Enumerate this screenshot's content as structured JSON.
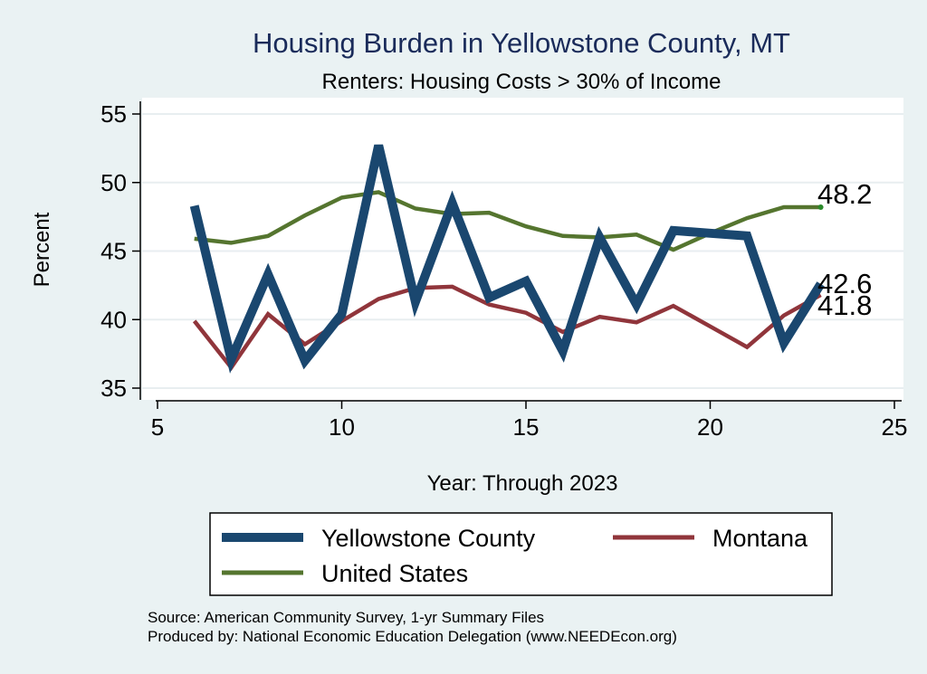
{
  "chart_data": {
    "type": "line",
    "title": "Housing Burden in Yellowstone County, MT",
    "subtitle": "Renters: Housing Costs > 30% of Income",
    "xlabel": "Year: Through 2023",
    "ylabel": "Percent",
    "xlim": [
      5,
      25
    ],
    "ylim": [
      34,
      56
    ],
    "xticks": [
      "5",
      "10",
      "15",
      "20",
      "25"
    ],
    "yticks": [
      "35",
      "40",
      "45",
      "50",
      "55"
    ],
    "x": [
      6,
      7,
      8,
      9,
      10,
      11,
      12,
      13,
      14,
      15,
      16,
      17,
      18,
      19,
      20,
      21,
      22,
      23
    ],
    "series": [
      {
        "name": "Yellowstone County",
        "color": "#1a476f",
        "values": [
          48.3,
          37.1,
          43.3,
          37.0,
          40.4,
          52.7,
          41.3,
          48.5,
          41.6,
          42.8,
          37.7,
          46.0,
          41.1,
          46.5,
          46.3,
          46.1,
          38.3,
          42.6
        ],
        "end_label": "42.6"
      },
      {
        "name": "Montana",
        "color": "#90353b",
        "values": [
          39.9,
          36.5,
          40.4,
          38.2,
          39.9,
          41.5,
          42.3,
          42.4,
          41.1,
          40.5,
          39.1,
          40.2,
          39.8,
          41.0,
          39.5,
          38.0,
          40.3,
          41.8
        ],
        "end_label": "41.8"
      },
      {
        "name": "United States",
        "color": "#55752f",
        "values": [
          45.9,
          45.6,
          46.1,
          47.6,
          48.9,
          49.3,
          48.1,
          47.7,
          47.8,
          46.8,
          46.1,
          46.0,
          46.2,
          45.1,
          46.3,
          47.4,
          48.2,
          48.2
        ],
        "end_label": "48.2"
      }
    ],
    "legend": {
      "position": "bottom",
      "items": [
        "Yellowstone County",
        "Montana",
        "United States"
      ]
    },
    "notes": [
      "Source: American Community Survey, 1-yr Summary Files",
      "Produced by: National Economic Education Delegation (www.NEEDEcon.org)"
    ]
  }
}
